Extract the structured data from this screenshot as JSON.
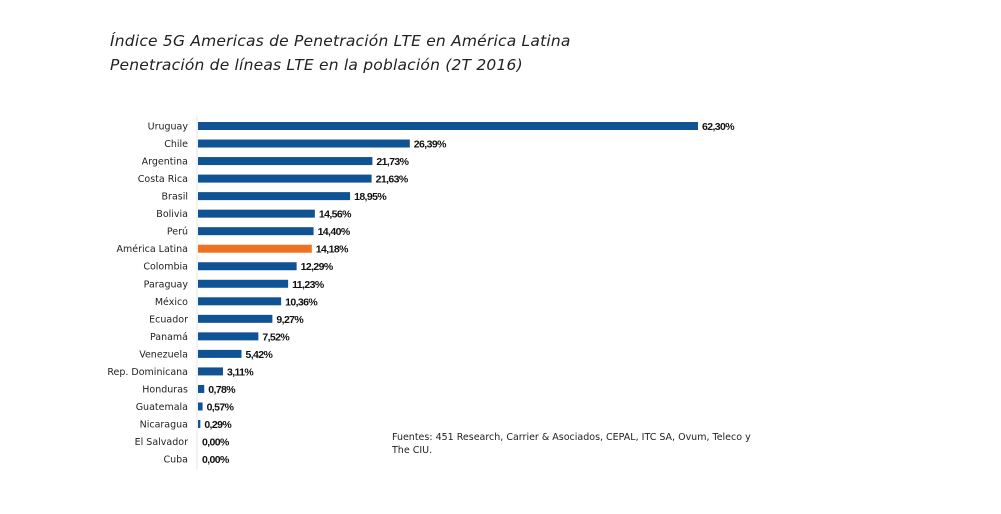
{
  "chart_data": {
    "type": "bar",
    "orientation": "horizontal",
    "title": "Índice 5G Americas de Penetración LTE en América Latina",
    "subtitle": "Penetración de líneas LTE en la población (2T 2016)",
    "categories": [
      "Uruguay",
      "Chile",
      "Argentina",
      "Costa Rica",
      "Brasil",
      "Bolivia",
      "Perú",
      "América Latina",
      "Colombia",
      "Paraguay",
      "México",
      "Ecuador",
      "Panamá",
      "Venezuela",
      "Rep. Dominicana",
      "Honduras",
      "Guatemala",
      "Nicaragua",
      "El Salvador",
      "Cuba"
    ],
    "values": [
      62.3,
      26.39,
      21.73,
      21.63,
      18.95,
      14.56,
      14.4,
      14.18,
      12.29,
      11.23,
      10.36,
      9.27,
      7.52,
      5.42,
      3.11,
      0.78,
      0.57,
      0.29,
      0.0,
      0.0
    ],
    "data_labels": [
      "62,30%",
      "26,39%",
      "21,73%",
      "21,63%",
      "18,95%",
      "14,56%",
      "14,40%",
      "14,18%",
      "12,29%",
      "11,23%",
      "10,36%",
      "9,27%",
      "7,52%",
      "5,42%",
      "3,11%",
      "0,78%",
      "0,57%",
      "0,29%",
      "0,00%",
      "0,00%"
    ],
    "highlight_category": "América Latina",
    "colors": {
      "bar": "#0f5394",
      "highlight": "#f07122"
    },
    "xlim": [
      0,
      62.3
    ],
    "grid": false,
    "legend": "none"
  },
  "source": "Fuentes: 451 Research,  Carrier & Asociados, CEPAL, ITC SA, Ovum, Teleco y The CIU."
}
